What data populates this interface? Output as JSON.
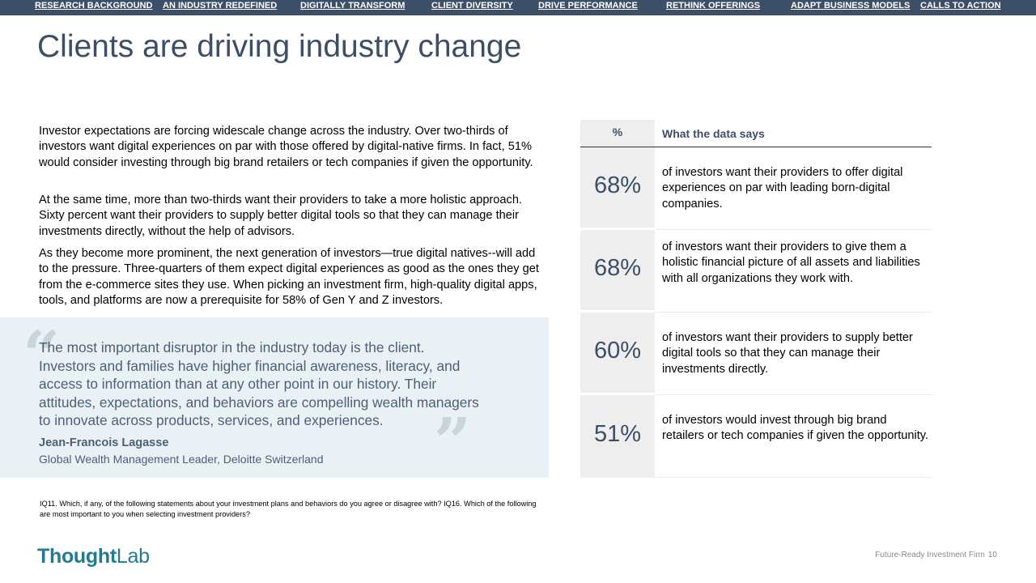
{
  "nav": {
    "items": [
      "RESEARCH BACKGROUND",
      "AN INDUSTRY REDEFINED",
      "DIGITALLY TRANSFORM",
      "CLIENT DIVERSITY",
      "DRIVE PERFORMANCE",
      "RETHINK OFFERINGS",
      "ADAPT BUSINESS MODELS",
      "CALLS TO ACTION"
    ]
  },
  "title": "Clients are driving industry change",
  "paragraphs": [
    "Investor expectations are forcing widescale change across the industry. Over two-thirds of investors want digital experiences on par with those offered by digital-native firms. In fact, 51% would consider investing through big brand retailers or tech companies if given the opportunity.",
    "At the same time, more than two-thirds want their providers to take a more holistic approach. Sixty percent want their providers to supply better digital tools so that they can manage their investments directly, without the help of advisors.",
    "As they become more prominent, the next generation of investors—true digital natives--will add to the pressure. Three-quarters of them expect digital experiences as good as the ones they get from the e-commerce sites they use. When picking an investment firm, high-quality digital apps, tools, and platforms are now a prerequisite for 58% of Gen Y and Z investors."
  ],
  "quote": {
    "open_mark": "“",
    "close_mark": "”",
    "text": "The most important disruptor in the industry today is the client. Investors and families have higher financial awareness, literacy, and access to information than at any other point in our history. Their attitudes, expectations, and behaviors are compelling wealth managers to innovate across products, services, and experiences.",
    "author": "Jean-Francois Lagasse",
    "role": "Global Wealth Management Leader, Deloitte Switzerland"
  },
  "footnote": "IQ11. Which, if any, of the following statements about your investment plans and behaviors do you agree or disagree with? IQ16. Which of the following are most important to you when selecting investment providers?",
  "logo": {
    "bold": "Thought",
    "light": "Lab"
  },
  "footer": {
    "text": "Future-Ready Investment Firm",
    "page": "10"
  },
  "table": {
    "header_pct": "%",
    "header_desc": "What the data says",
    "rows": [
      {
        "pct": "68%",
        "desc": "of investors want their providers to offer digital experiences on par with leading born-digital companies."
      },
      {
        "pct": "68%",
        "desc": "of investors want their providers to give them a holistic financial picture of all assets and liabilities with all organizations they work with."
      },
      {
        "pct": "60%",
        "desc": "of investors want their providers to supply better digital tools so that they can manage their investments directly."
      },
      {
        "pct": "51%",
        "desc": "of investors would invest through big brand retailers or tech companies if given the opportunity."
      }
    ]
  }
}
